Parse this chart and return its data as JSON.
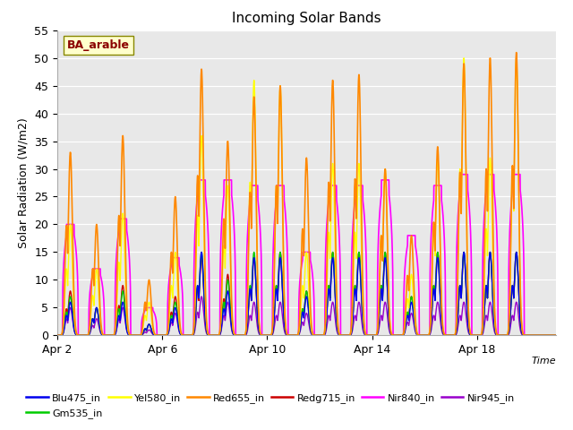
{
  "title": "Incoming Solar Bands",
  "xlabel": "Time",
  "ylabel": "Solar Radiation (W/m2)",
  "ylim": [
    0,
    55
  ],
  "annotation": "BA_arable",
  "plot_bg": "#e8e8e8",
  "fig_bg": "#ffffff",
  "grid_color": "#ffffff",
  "series": [
    {
      "name": "Blu475_in",
      "color": "#0000ee",
      "lw": 1.0
    },
    {
      "name": "Gm535_in",
      "color": "#00cc00",
      "lw": 1.0
    },
    {
      "name": "Yel580_in",
      "color": "#ffff00",
      "lw": 1.0
    },
    {
      "name": "Red655_in",
      "color": "#ff8800",
      "lw": 1.2
    },
    {
      "name": "Redg715_in",
      "color": "#cc0000",
      "lw": 1.0
    },
    {
      "name": "Nir840_in",
      "color": "#ff00ff",
      "lw": 1.2
    },
    {
      "name": "Nir945_in",
      "color": "#9900cc",
      "lw": 1.0
    }
  ],
  "xtick_labels": [
    "Apr 2",
    "Apr 6",
    "Apr 10",
    "Apr 14",
    "Apr 18"
  ],
  "xtick_positions": [
    1,
    5,
    9,
    13,
    17
  ],
  "xlim_start": 1,
  "xlim_end": 20,
  "ytick_labels": [
    "0",
    "5",
    "10",
    "15",
    "20",
    "25",
    "30",
    "35",
    "40",
    "45",
    "50",
    "55"
  ],
  "ytick_positions": [
    0,
    5,
    10,
    15,
    20,
    25,
    30,
    35,
    40,
    45,
    50,
    55
  ],
  "day_peaks_red": [
    33,
    20,
    36,
    10,
    25,
    48,
    35,
    43,
    45,
    32,
    46,
    47,
    30,
    18,
    34,
    49,
    50,
    51,
    0
  ],
  "day_peaks_yel": [
    20,
    12,
    22,
    6,
    15,
    36,
    27,
    46,
    45,
    15,
    31,
    31,
    30,
    11,
    32,
    50,
    32,
    50,
    0
  ],
  "day_peaks_nir840": [
    20,
    12,
    21,
    5,
    14,
    28,
    28,
    27,
    27,
    15,
    27,
    27,
    28,
    18,
    27,
    29,
    29,
    29,
    0
  ],
  "day_peaks_blu": [
    6,
    5,
    6,
    2,
    5,
    15,
    8,
    14,
    14,
    7,
    14,
    14,
    14,
    6,
    14,
    15,
    15,
    15,
    0
  ],
  "day_peaks_grn": [
    7,
    5,
    8,
    2,
    6,
    15,
    10,
    15,
    15,
    8,
    15,
    15,
    15,
    7,
    15,
    15,
    15,
    15,
    0
  ],
  "day_peaks_redg": [
    8,
    5,
    9,
    2,
    7,
    14,
    11,
    14,
    15,
    8,
    15,
    15,
    15,
    7,
    15,
    15,
    15,
    15,
    0
  ],
  "day_peaks_nir945": [
    5,
    3,
    5,
    1,
    4,
    7,
    6,
    6,
    6,
    4,
    6,
    6,
    6,
    4,
    6,
    6,
    6,
    6,
    0
  ],
  "num_days": 19,
  "samples_per_day": 144
}
